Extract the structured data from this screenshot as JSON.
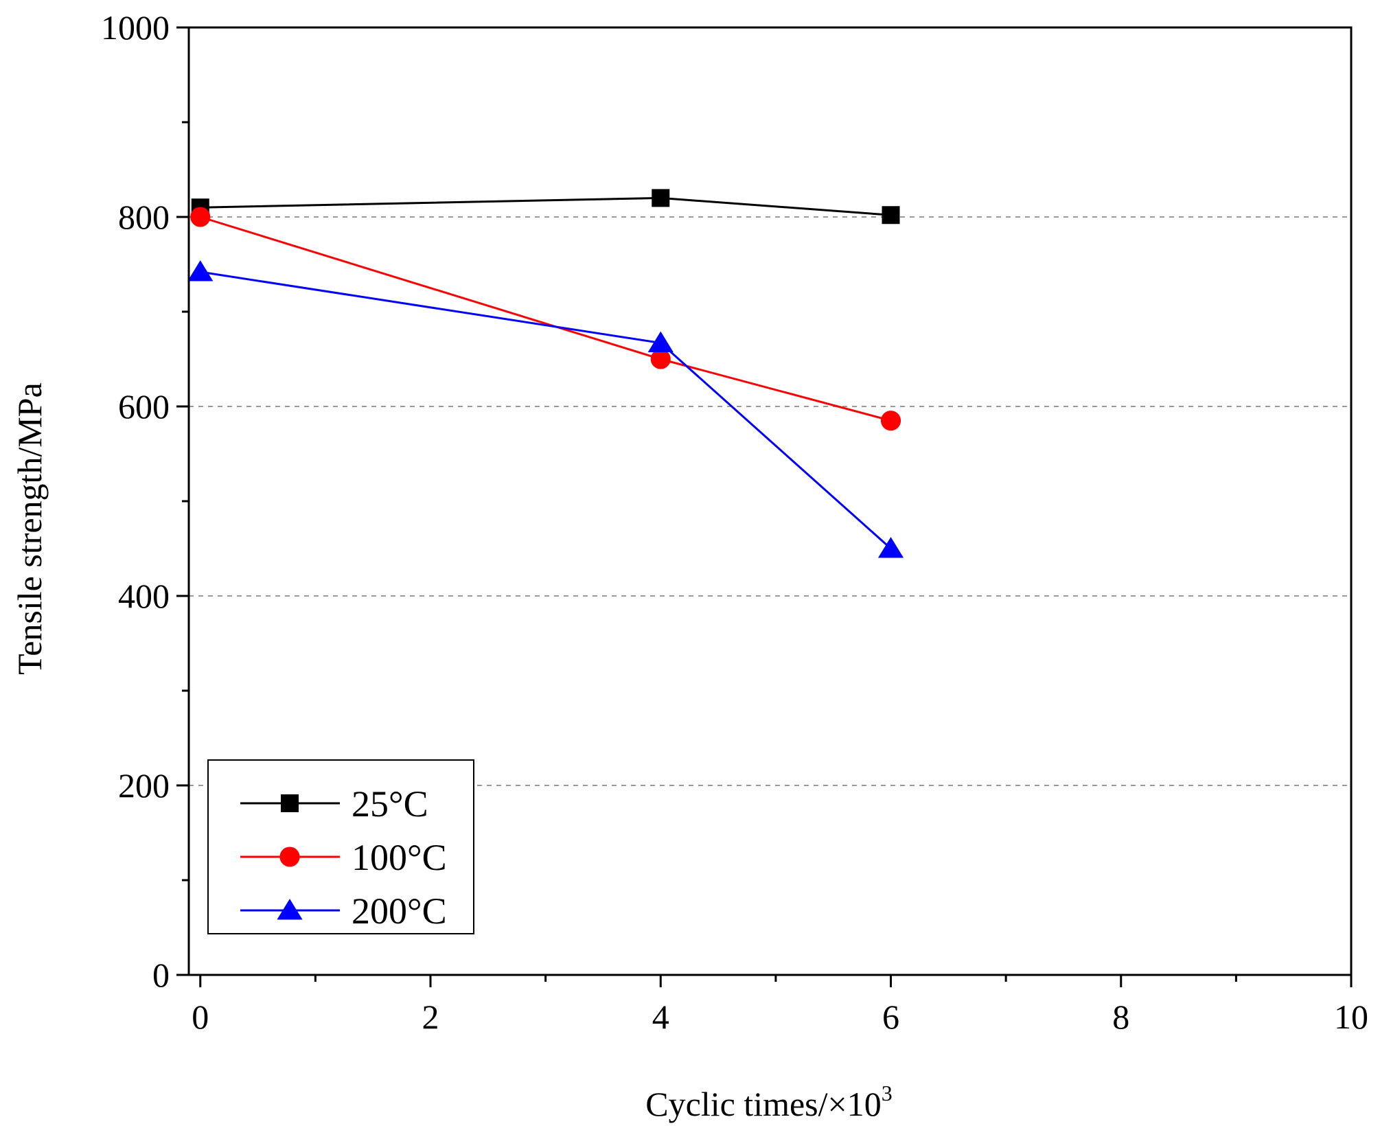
{
  "chart_data": {
    "type": "line",
    "title": "",
    "xlabel": "Cyclic times/×10",
    "xlabel_superscript": "3",
    "ylabel": "Tensile strength/MPa",
    "xlim": [
      -0.1,
      10
    ],
    "ylim": [
      0,
      1000
    ],
    "x_ticks": [
      0,
      2,
      4,
      6,
      8,
      10
    ],
    "y_ticks": [
      0,
      200,
      400,
      600,
      800,
      1000
    ],
    "grid": "horizontal dashed at 200, 400, 600, 800",
    "legend_position": "bottom-left",
    "series": [
      {
        "name": "25°C",
        "color": "#000000",
        "marker": "square",
        "x": [
          0,
          4,
          6
        ],
        "values": [
          810,
          820,
          802
        ]
      },
      {
        "name": "100°C",
        "color": "#ff0000",
        "marker": "circle",
        "x": [
          0,
          4,
          6
        ],
        "values": [
          800,
          650,
          585
        ]
      },
      {
        "name": "200°C",
        "color": "#0000ff",
        "marker": "triangle",
        "x": [
          0,
          4,
          6
        ],
        "values": [
          742,
          667,
          450
        ]
      }
    ]
  }
}
